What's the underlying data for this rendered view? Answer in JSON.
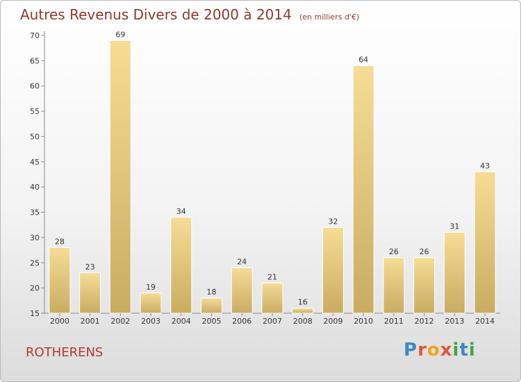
{
  "header": {
    "title": "Autres Revenus Divers de 2000 à 2014",
    "subtitle": "(en milliers d'€)"
  },
  "footer": {
    "place": "ROTHERENS",
    "logo_text": "Proxiti"
  },
  "colors": {
    "title": "#8b3a2e",
    "place": "#b33a2b",
    "bar_light": "#f6dc95",
    "bar_dark": "#c9ac62",
    "logo_letters": [
      "#3e87c7",
      "#e0573a",
      "#f2a41e",
      "#e0573a",
      "#47a43f",
      "#3e87c7",
      "#47a43f"
    ]
  },
  "chart_data": {
    "type": "bar",
    "categories": [
      "2000",
      "2001",
      "2002",
      "2003",
      "2004",
      "2005",
      "2006",
      "2007",
      "2008",
      "2009",
      "2010",
      "2011",
      "2012",
      "2013",
      "2014"
    ],
    "values": [
      28,
      23,
      69,
      19,
      34,
      18,
      24,
      21,
      16,
      32,
      64,
      26,
      26,
      31,
      43
    ],
    "ylim": [
      15,
      70
    ],
    "yticks": [
      15,
      20,
      25,
      30,
      35,
      40,
      45,
      50,
      55,
      60,
      65,
      70
    ],
    "grid": false,
    "data_labels": true
  }
}
